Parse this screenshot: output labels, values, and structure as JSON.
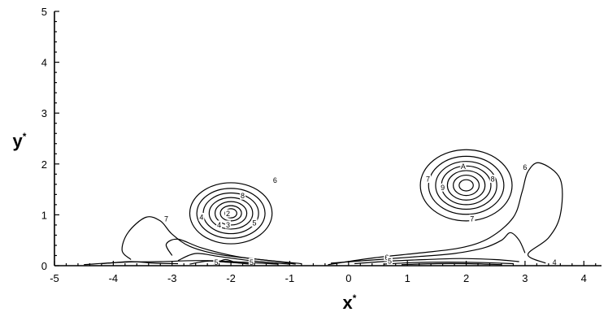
{
  "chart_data": {
    "type": "contour",
    "title": "",
    "xlabel": "x",
    "ylabel": "y",
    "label_superscript": "*",
    "xlim": [
      -5,
      4.3
    ],
    "ylim": [
      0,
      5
    ],
    "xticks": [
      -5,
      -4,
      -3,
      -2,
      -1,
      0,
      1,
      2,
      3,
      4
    ],
    "yticks": [
      0,
      1,
      2,
      3,
      4,
      5
    ],
    "vortices": [
      {
        "center": [
          -2.0,
          1.03
        ],
        "ring_radii": [
          [
            0.7,
            0.6
          ],
          [
            0.58,
            0.49
          ],
          [
            0.47,
            0.4
          ],
          [
            0.37,
            0.31
          ],
          [
            0.27,
            0.23
          ],
          [
            0.18,
            0.15
          ],
          [
            0.1,
            0.09
          ]
        ]
      },
      {
        "center": [
          2.0,
          1.58
        ],
        "ring_radii": [
          [
            0.78,
            0.7
          ],
          [
            0.64,
            0.57
          ],
          [
            0.52,
            0.47
          ],
          [
            0.42,
            0.38
          ],
          [
            0.32,
            0.29
          ],
          [
            0.22,
            0.2
          ],
          [
            0.12,
            0.11
          ]
        ]
      }
    ],
    "left_tail": [
      [
        [
          -3.7,
          0.12
        ],
        [
          -3.85,
          0.3
        ],
        [
          -3.75,
          0.65
        ],
        [
          -3.45,
          0.95
        ],
        [
          -3.2,
          0.88
        ],
        [
          -3.0,
          0.62
        ],
        [
          -2.7,
          0.38
        ],
        [
          -2.2,
          0.22
        ],
        [
          -1.5,
          0.12
        ],
        [
          -0.8,
          0.04
        ]
      ],
      [
        [
          -3.0,
          0.2
        ],
        [
          -3.1,
          0.42
        ],
        [
          -2.9,
          0.52
        ],
        [
          -2.5,
          0.35
        ],
        [
          -1.9,
          0.18
        ],
        [
          -1.2,
          0.08
        ],
        [
          -0.9,
          0.03
        ]
      ],
      [
        [
          -2.9,
          0.1
        ],
        [
          -2.6,
          0.24
        ],
        [
          -2.2,
          0.18
        ],
        [
          -1.6,
          0.09
        ],
        [
          -1.0,
          0.03
        ]
      ],
      [
        [
          -4.5,
          0.02
        ],
        [
          -3.8,
          0.07
        ],
        [
          -3.2,
          0.08
        ],
        [
          -2.5,
          0.1
        ],
        [
          -1.8,
          0.07
        ],
        [
          -1.2,
          0.03
        ]
      ],
      [
        [
          -4.2,
          0.04
        ],
        [
          -3.7,
          0.08
        ],
        [
          -3.3,
          0.05
        ],
        [
          -2.9,
          0.04
        ]
      ],
      [
        [
          -2.7,
          0.03
        ],
        [
          -2.4,
          0.09
        ],
        [
          -2.1,
          0.07
        ],
        [
          -1.7,
          0.04
        ]
      ],
      [
        [
          -2.3,
          0.02
        ],
        [
          -2.1,
          0.12
        ],
        [
          -1.9,
          0.06
        ],
        [
          -1.6,
          0.02
        ]
      ]
    ],
    "right_tail": [
      [
        [
          -0.35,
          0.02
        ],
        [
          0.4,
          0.15
        ],
        [
          1.2,
          0.25
        ],
        [
          1.9,
          0.35
        ],
        [
          2.4,
          0.55
        ],
        [
          2.8,
          0.95
        ],
        [
          2.95,
          1.45
        ],
        [
          3.05,
          1.85
        ],
        [
          3.25,
          2.02
        ],
        [
          3.6,
          1.7
        ],
        [
          3.6,
          1.0
        ],
        [
          3.4,
          0.55
        ],
        [
          3.05,
          0.22
        ],
        [
          3.35,
          0.05
        ]
      ],
      [
        [
          -0.3,
          0.05
        ],
        [
          0.5,
          0.12
        ],
        [
          1.2,
          0.18
        ],
        [
          1.8,
          0.24
        ],
        [
          2.3,
          0.35
        ],
        [
          2.6,
          0.5
        ],
        [
          2.75,
          0.65
        ],
        [
          2.9,
          0.5
        ],
        [
          3.0,
          0.25
        ]
      ],
      [
        [
          0.1,
          0.04
        ],
        [
          0.7,
          0.09
        ],
        [
          1.3,
          0.12
        ],
        [
          1.9,
          0.14
        ],
        [
          2.5,
          0.12
        ],
        [
          2.9,
          0.08
        ]
      ],
      [
        [
          0.6,
          0.03
        ],
        [
          1.1,
          0.06
        ],
        [
          1.7,
          0.07
        ],
        [
          2.3,
          0.06
        ],
        [
          2.8,
          0.04
        ]
      ],
      [
        [
          0.9,
          0.02
        ],
        [
          1.5,
          0.04
        ],
        [
          2.0,
          0.04
        ],
        [
          2.6,
          0.02
        ]
      ]
    ],
    "contour_labels": [
      {
        "text": "6",
        "x": -1.25,
        "y": 1.68
      },
      {
        "text": "8",
        "x": -1.8,
        "y": 1.37
      },
      {
        "text": "7",
        "x": -3.1,
        "y": 0.92
      },
      {
        "text": "4",
        "x": -2.5,
        "y": 0.95
      },
      {
        "text": "2",
        "x": -2.05,
        "y": 1.02
      },
      {
        "text": "3",
        "x": -2.05,
        "y": 0.8
      },
      {
        "text": "5",
        "x": -1.6,
        "y": 0.84
      },
      {
        "text": "4",
        "x": -2.2,
        "y": 0.8
      },
      {
        "text": "6",
        "x": 3.0,
        "y": 1.93
      },
      {
        "text": "A",
        "x": 1.95,
        "y": 1.95
      },
      {
        "text": "8",
        "x": 2.45,
        "y": 1.7
      },
      {
        "text": "9",
        "x": 1.6,
        "y": 1.53
      },
      {
        "text": "7",
        "x": 1.35,
        "y": 1.7
      },
      {
        "text": "7",
        "x": 2.1,
        "y": 0.92
      },
      {
        "text": "6",
        "x": 0.65,
        "y": 0.16
      },
      {
        "text": "5",
        "x": 0.7,
        "y": 0.09
      },
      {
        "text": "4",
        "x": 3.5,
        "y": 0.06
      },
      {
        "text": "5",
        "x": -1.65,
        "y": 0.06
      },
      {
        "text": "5",
        "x": -2.25,
        "y": 0.06
      }
    ]
  }
}
